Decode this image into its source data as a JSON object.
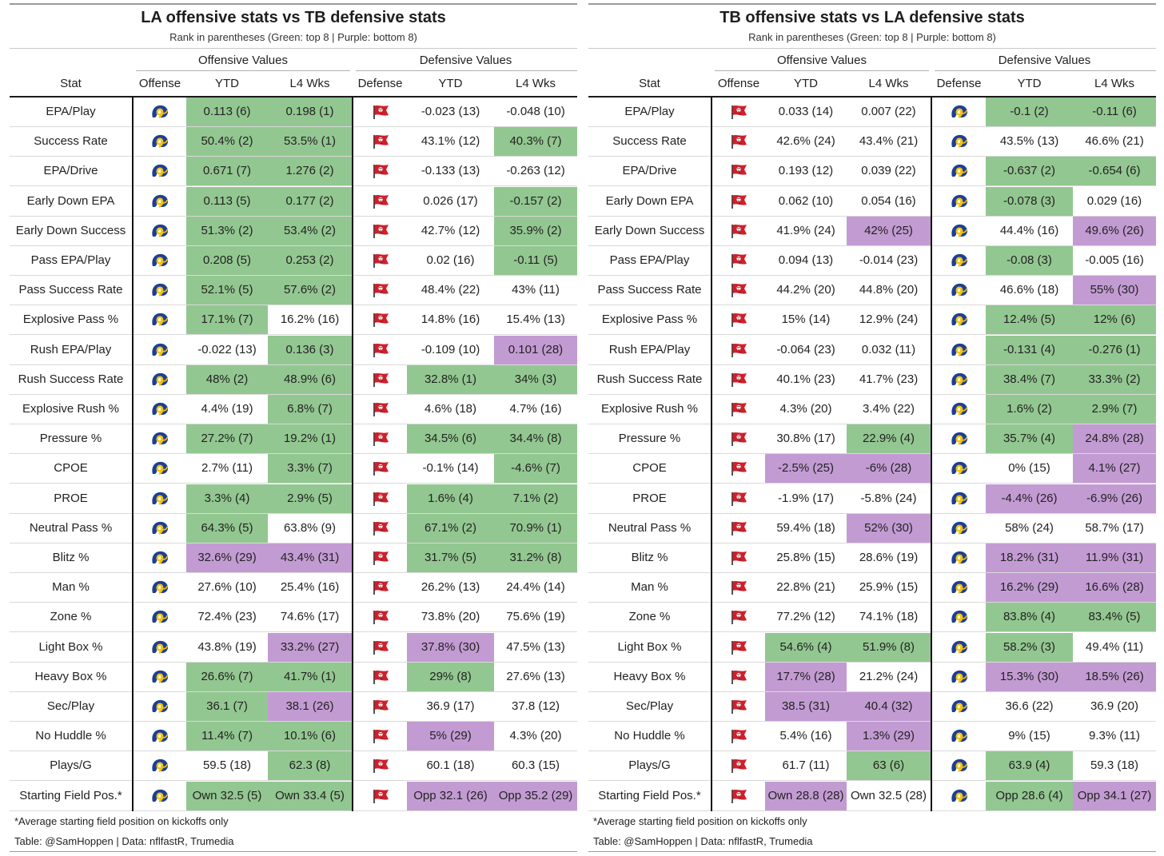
{
  "chart_data": [
    {
      "type": "table",
      "title": "LA offensive stats vs TB defensive stats",
      "subtitle": "Rank in parentheses (Green: top 8 | Purple: bottom 8)",
      "groups": {
        "offense": "Offensive Values",
        "defense": "Defensive Values"
      },
      "columns": {
        "stat": "Stat",
        "offense": "Offense",
        "off_ytd": "YTD",
        "off_l4": "L4 Wks",
        "defense": "Defense",
        "def_ytd": "YTD",
        "def_l4": "L4 Wks"
      },
      "offense_team": "rams-logo",
      "defense_team": "buccaneers-logo",
      "rows": [
        {
          "stat": "EPA/Play",
          "off_ytd": "0.113 (6)",
          "off_ytd_c": "g",
          "off_l4": "0.198 (1)",
          "off_l4_c": "g",
          "def_ytd": "-0.023 (13)",
          "def_ytd_c": "",
          "def_l4": "-0.048 (10)",
          "def_l4_c": ""
        },
        {
          "stat": "Success Rate",
          "off_ytd": "50.4% (2)",
          "off_ytd_c": "g",
          "off_l4": "53.5% (1)",
          "off_l4_c": "g",
          "def_ytd": "43.1% (12)",
          "def_ytd_c": "",
          "def_l4": "40.3% (7)",
          "def_l4_c": "g"
        },
        {
          "stat": "EPA/Drive",
          "off_ytd": "0.671 (7)",
          "off_ytd_c": "g",
          "off_l4": "1.276 (2)",
          "off_l4_c": "g",
          "def_ytd": "-0.133 (13)",
          "def_ytd_c": "",
          "def_l4": "-0.263 (12)",
          "def_l4_c": ""
        },
        {
          "stat": "Early Down EPA",
          "off_ytd": "0.113 (5)",
          "off_ytd_c": "g",
          "off_l4": "0.177 (2)",
          "off_l4_c": "g",
          "def_ytd": "0.026 (17)",
          "def_ytd_c": "",
          "def_l4": "-0.157 (2)",
          "def_l4_c": "g"
        },
        {
          "stat": "Early Down Success",
          "off_ytd": "51.3% (2)",
          "off_ytd_c": "g",
          "off_l4": "53.4% (2)",
          "off_l4_c": "g",
          "def_ytd": "42.7% (12)",
          "def_ytd_c": "",
          "def_l4": "35.9% (2)",
          "def_l4_c": "g"
        },
        {
          "stat": "Pass EPA/Play",
          "off_ytd": "0.208 (5)",
          "off_ytd_c": "g",
          "off_l4": "0.253 (2)",
          "off_l4_c": "g",
          "def_ytd": "0.02 (16)",
          "def_ytd_c": "",
          "def_l4": "-0.11 (5)",
          "def_l4_c": "g"
        },
        {
          "stat": "Pass Success Rate",
          "off_ytd": "52.1% (5)",
          "off_ytd_c": "g",
          "off_l4": "57.6% (2)",
          "off_l4_c": "g",
          "def_ytd": "48.4% (22)",
          "def_ytd_c": "",
          "def_l4": "43% (11)",
          "def_l4_c": ""
        },
        {
          "stat": "Explosive Pass %",
          "off_ytd": "17.1% (7)",
          "off_ytd_c": "g",
          "off_l4": "16.2% (16)",
          "off_l4_c": "",
          "def_ytd": "14.8% (16)",
          "def_ytd_c": "",
          "def_l4": "15.4% (13)",
          "def_l4_c": ""
        },
        {
          "stat": "Rush EPA/Play",
          "off_ytd": "-0.022 (13)",
          "off_ytd_c": "",
          "off_l4": "0.136 (3)",
          "off_l4_c": "g",
          "def_ytd": "-0.109 (10)",
          "def_ytd_c": "",
          "def_l4": "0.101 (28)",
          "def_l4_c": "p"
        },
        {
          "stat": "Rush Success Rate",
          "off_ytd": "48% (2)",
          "off_ytd_c": "g",
          "off_l4": "48.9% (6)",
          "off_l4_c": "g",
          "def_ytd": "32.8% (1)",
          "def_ytd_c": "g",
          "def_l4": "34% (3)",
          "def_l4_c": "g"
        },
        {
          "stat": "Explosive Rush %",
          "off_ytd": "4.4% (19)",
          "off_ytd_c": "",
          "off_l4": "6.8% (7)",
          "off_l4_c": "g",
          "def_ytd": "4.6% (18)",
          "def_ytd_c": "",
          "def_l4": "4.7% (16)",
          "def_l4_c": ""
        },
        {
          "stat": "Pressure %",
          "off_ytd": "27.2% (7)",
          "off_ytd_c": "g",
          "off_l4": "19.2% (1)",
          "off_l4_c": "g",
          "def_ytd": "34.5% (6)",
          "def_ytd_c": "g",
          "def_l4": "34.4% (8)",
          "def_l4_c": "g"
        },
        {
          "stat": "CPOE",
          "off_ytd": "2.7% (11)",
          "off_ytd_c": "",
          "off_l4": "3.3% (7)",
          "off_l4_c": "g",
          "def_ytd": "-0.1% (14)",
          "def_ytd_c": "",
          "def_l4": "-4.6% (7)",
          "def_l4_c": "g"
        },
        {
          "stat": "PROE",
          "off_ytd": "3.3% (4)",
          "off_ytd_c": "g",
          "off_l4": "2.9% (5)",
          "off_l4_c": "g",
          "def_ytd": "1.6% (4)",
          "def_ytd_c": "g",
          "def_l4": "7.1% (2)",
          "def_l4_c": "g"
        },
        {
          "stat": "Neutral Pass %",
          "off_ytd": "64.3% (5)",
          "off_ytd_c": "g",
          "off_l4": "63.8% (9)",
          "off_l4_c": "",
          "def_ytd": "67.1% (2)",
          "def_ytd_c": "g",
          "def_l4": "70.9% (1)",
          "def_l4_c": "g"
        },
        {
          "stat": "Blitz %",
          "off_ytd": "32.6% (29)",
          "off_ytd_c": "p",
          "off_l4": "43.4% (31)",
          "off_l4_c": "p",
          "def_ytd": "31.7% (5)",
          "def_ytd_c": "g",
          "def_l4": "31.2% (8)",
          "def_l4_c": "g"
        },
        {
          "stat": "Man %",
          "off_ytd": "27.6% (10)",
          "off_ytd_c": "",
          "off_l4": "25.4% (16)",
          "off_l4_c": "",
          "def_ytd": "26.2% (13)",
          "def_ytd_c": "",
          "def_l4": "24.4% (14)",
          "def_l4_c": ""
        },
        {
          "stat": "Zone %",
          "off_ytd": "72.4% (23)",
          "off_ytd_c": "",
          "off_l4": "74.6% (17)",
          "off_l4_c": "",
          "def_ytd": "73.8% (20)",
          "def_ytd_c": "",
          "def_l4": "75.6% (19)",
          "def_l4_c": ""
        },
        {
          "stat": "Light Box %",
          "off_ytd": "43.8% (19)",
          "off_ytd_c": "",
          "off_l4": "33.2% (27)",
          "off_l4_c": "p",
          "def_ytd": "37.8% (30)",
          "def_ytd_c": "p",
          "def_l4": "47.5% (13)",
          "def_l4_c": ""
        },
        {
          "stat": "Heavy Box %",
          "off_ytd": "26.6% (7)",
          "off_ytd_c": "g",
          "off_l4": "41.7% (1)",
          "off_l4_c": "g",
          "def_ytd": "29% (8)",
          "def_ytd_c": "g",
          "def_l4": "27.6% (13)",
          "def_l4_c": ""
        },
        {
          "stat": "Sec/Play",
          "off_ytd": "36.1 (7)",
          "off_ytd_c": "g",
          "off_l4": "38.1 (26)",
          "off_l4_c": "p",
          "def_ytd": "36.9 (17)",
          "def_ytd_c": "",
          "def_l4": "37.8 (12)",
          "def_l4_c": ""
        },
        {
          "stat": "No Huddle %",
          "off_ytd": "11.4% (7)",
          "off_ytd_c": "g",
          "off_l4": "10.1% (6)",
          "off_l4_c": "g",
          "def_ytd": "5% (29)",
          "def_ytd_c": "p",
          "def_l4": "4.3% (20)",
          "def_l4_c": ""
        },
        {
          "stat": "Plays/G",
          "off_ytd": "59.5 (18)",
          "off_ytd_c": "",
          "off_l4": "62.3 (8)",
          "off_l4_c": "g",
          "def_ytd": "60.1 (18)",
          "def_ytd_c": "",
          "def_l4": "60.3 (15)",
          "def_l4_c": ""
        },
        {
          "stat": "Starting Field Pos.*",
          "off_ytd": "Own 32.5 (5)",
          "off_ytd_c": "g",
          "off_l4": "Own 33.4 (5)",
          "off_l4_c": "g",
          "def_ytd": "Opp 32.1 (26)",
          "def_ytd_c": "p",
          "def_l4": "Opp 35.2 (29)",
          "def_l4_c": "p"
        }
      ],
      "footnote": "*Average starting field position on kickoffs only",
      "credit": "Table: @SamHoppen | Data: nflfastR, Trumedia"
    },
    {
      "type": "table",
      "title": "TB offensive stats vs LA defensive stats",
      "subtitle": "Rank in parentheses (Green: top 8 | Purple: bottom 8)",
      "groups": {
        "offense": "Offensive Values",
        "defense": "Defensive Values"
      },
      "columns": {
        "stat": "Stat",
        "offense": "Offense",
        "off_ytd": "YTD",
        "off_l4": "L4 Wks",
        "defense": "Defense",
        "def_ytd": "YTD",
        "def_l4": "L4 Wks"
      },
      "offense_team": "buccaneers-logo",
      "defense_team": "rams-logo",
      "rows": [
        {
          "stat": "EPA/Play",
          "off_ytd": "0.033 (14)",
          "off_ytd_c": "",
          "off_l4": "0.007 (22)",
          "off_l4_c": "",
          "def_ytd": "-0.1 (2)",
          "def_ytd_c": "g",
          "def_l4": "-0.11 (6)",
          "def_l4_c": "g"
        },
        {
          "stat": "Success Rate",
          "off_ytd": "42.6% (24)",
          "off_ytd_c": "",
          "off_l4": "43.4% (21)",
          "off_l4_c": "",
          "def_ytd": "43.5% (13)",
          "def_ytd_c": "",
          "def_l4": "46.6% (21)",
          "def_l4_c": ""
        },
        {
          "stat": "EPA/Drive",
          "off_ytd": "0.193 (12)",
          "off_ytd_c": "",
          "off_l4": "0.039 (22)",
          "off_l4_c": "",
          "def_ytd": "-0.637 (2)",
          "def_ytd_c": "g",
          "def_l4": "-0.654 (6)",
          "def_l4_c": "g"
        },
        {
          "stat": "Early Down EPA",
          "off_ytd": "0.062 (10)",
          "off_ytd_c": "",
          "off_l4": "0.054 (16)",
          "off_l4_c": "",
          "def_ytd": "-0.078 (3)",
          "def_ytd_c": "g",
          "def_l4": "0.029 (16)",
          "def_l4_c": ""
        },
        {
          "stat": "Early Down Success",
          "off_ytd": "41.9% (24)",
          "off_ytd_c": "",
          "off_l4": "42% (25)",
          "off_l4_c": "p",
          "def_ytd": "44.4% (16)",
          "def_ytd_c": "",
          "def_l4": "49.6% (26)",
          "def_l4_c": "p"
        },
        {
          "stat": "Pass EPA/Play",
          "off_ytd": "0.094 (13)",
          "off_ytd_c": "",
          "off_l4": "-0.014 (23)",
          "off_l4_c": "",
          "def_ytd": "-0.08 (3)",
          "def_ytd_c": "g",
          "def_l4": "-0.005 (16)",
          "def_l4_c": ""
        },
        {
          "stat": "Pass Success Rate",
          "off_ytd": "44.2% (20)",
          "off_ytd_c": "",
          "off_l4": "44.8% (20)",
          "off_l4_c": "",
          "def_ytd": "46.6% (18)",
          "def_ytd_c": "",
          "def_l4": "55% (30)",
          "def_l4_c": "p"
        },
        {
          "stat": "Explosive Pass %",
          "off_ytd": "15% (14)",
          "off_ytd_c": "",
          "off_l4": "12.9% (24)",
          "off_l4_c": "",
          "def_ytd": "12.4% (5)",
          "def_ytd_c": "g",
          "def_l4": "12% (6)",
          "def_l4_c": "g"
        },
        {
          "stat": "Rush EPA/Play",
          "off_ytd": "-0.064 (23)",
          "off_ytd_c": "",
          "off_l4": "0.032 (11)",
          "off_l4_c": "",
          "def_ytd": "-0.131 (4)",
          "def_ytd_c": "g",
          "def_l4": "-0.276 (1)",
          "def_l4_c": "g"
        },
        {
          "stat": "Rush Success Rate",
          "off_ytd": "40.1% (23)",
          "off_ytd_c": "",
          "off_l4": "41.7% (23)",
          "off_l4_c": "",
          "def_ytd": "38.4% (7)",
          "def_ytd_c": "g",
          "def_l4": "33.3% (2)",
          "def_l4_c": "g"
        },
        {
          "stat": "Explosive Rush %",
          "off_ytd": "4.3% (20)",
          "off_ytd_c": "",
          "off_l4": "3.4% (22)",
          "off_l4_c": "",
          "def_ytd": "1.6% (2)",
          "def_ytd_c": "g",
          "def_l4": "2.9% (7)",
          "def_l4_c": "g"
        },
        {
          "stat": "Pressure %",
          "off_ytd": "30.8% (17)",
          "off_ytd_c": "",
          "off_l4": "22.9% (4)",
          "off_l4_c": "g",
          "def_ytd": "35.7% (4)",
          "def_ytd_c": "g",
          "def_l4": "24.8% (28)",
          "def_l4_c": "p"
        },
        {
          "stat": "CPOE",
          "off_ytd": "-2.5% (25)",
          "off_ytd_c": "p",
          "off_l4": "-6% (28)",
          "off_l4_c": "p",
          "def_ytd": "0% (15)",
          "def_ytd_c": "",
          "def_l4": "4.1% (27)",
          "def_l4_c": "p"
        },
        {
          "stat": "PROE",
          "off_ytd": "-1.9% (17)",
          "off_ytd_c": "",
          "off_l4": "-5.8% (24)",
          "off_l4_c": "",
          "def_ytd": "-4.4% (26)",
          "def_ytd_c": "p",
          "def_l4": "-6.9% (26)",
          "def_l4_c": "p"
        },
        {
          "stat": "Neutral Pass %",
          "off_ytd": "59.4% (18)",
          "off_ytd_c": "",
          "off_l4": "52% (30)",
          "off_l4_c": "p",
          "def_ytd": "58% (24)",
          "def_ytd_c": "",
          "def_l4": "58.7% (17)",
          "def_l4_c": ""
        },
        {
          "stat": "Blitz %",
          "off_ytd": "25.8% (15)",
          "off_ytd_c": "",
          "off_l4": "28.6% (19)",
          "off_l4_c": "",
          "def_ytd": "18.2% (31)",
          "def_ytd_c": "p",
          "def_l4": "11.9% (31)",
          "def_l4_c": "p"
        },
        {
          "stat": "Man %",
          "off_ytd": "22.8% (21)",
          "off_ytd_c": "",
          "off_l4": "25.9% (15)",
          "off_l4_c": "",
          "def_ytd": "16.2% (29)",
          "def_ytd_c": "p",
          "def_l4": "16.6% (28)",
          "def_l4_c": "p"
        },
        {
          "stat": "Zone %",
          "off_ytd": "77.2% (12)",
          "off_ytd_c": "",
          "off_l4": "74.1% (18)",
          "off_l4_c": "",
          "def_ytd": "83.8% (4)",
          "def_ytd_c": "g",
          "def_l4": "83.4% (5)",
          "def_l4_c": "g"
        },
        {
          "stat": "Light Box %",
          "off_ytd": "54.6% (4)",
          "off_ytd_c": "g",
          "off_l4": "51.9% (8)",
          "off_l4_c": "g",
          "def_ytd": "58.2% (3)",
          "def_ytd_c": "g",
          "def_l4": "49.4% (11)",
          "def_l4_c": ""
        },
        {
          "stat": "Heavy Box %",
          "off_ytd": "17.7% (28)",
          "off_ytd_c": "p",
          "off_l4": "21.2% (24)",
          "off_l4_c": "",
          "def_ytd": "15.3% (30)",
          "def_ytd_c": "p",
          "def_l4": "18.5% (26)",
          "def_l4_c": "p"
        },
        {
          "stat": "Sec/Play",
          "off_ytd": "38.5 (31)",
          "off_ytd_c": "p",
          "off_l4": "40.4 (32)",
          "off_l4_c": "p",
          "def_ytd": "36.6 (22)",
          "def_ytd_c": "",
          "def_l4": "36.9 (20)",
          "def_l4_c": ""
        },
        {
          "stat": "No Huddle %",
          "off_ytd": "5.4% (16)",
          "off_ytd_c": "",
          "off_l4": "1.3% (29)",
          "off_l4_c": "p",
          "def_ytd": "9% (15)",
          "def_ytd_c": "",
          "def_l4": "9.3% (11)",
          "def_l4_c": ""
        },
        {
          "stat": "Plays/G",
          "off_ytd": "61.7 (11)",
          "off_ytd_c": "",
          "off_l4": "63 (6)",
          "off_l4_c": "g",
          "def_ytd": "63.9 (4)",
          "def_ytd_c": "g",
          "def_l4": "59.3 (18)",
          "def_l4_c": ""
        },
        {
          "stat": "Starting Field Pos.*",
          "off_ytd": "Own 28.8 (28)",
          "off_ytd_c": "p",
          "off_l4": "Own 32.5 (28)",
          "off_l4_c": "",
          "def_ytd": "Opp 28.6 (4)",
          "def_ytd_c": "g",
          "def_l4": "Opp 34.1 (27)",
          "def_l4_c": "p"
        }
      ],
      "footnote": "*Average starting field position on kickoffs only",
      "credit": "Table: @SamHoppen | Data: nflfastR, Trumedia"
    }
  ]
}
